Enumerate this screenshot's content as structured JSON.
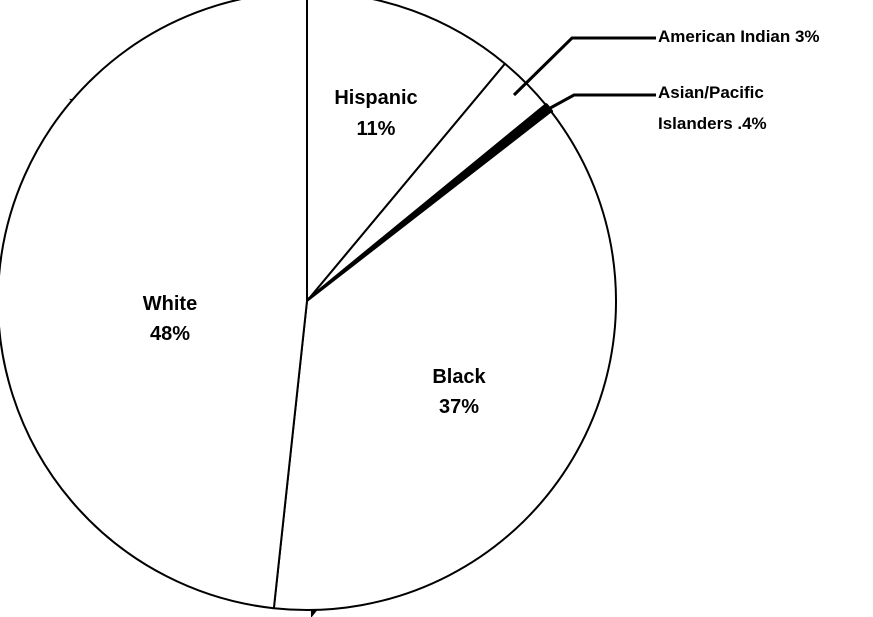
{
  "chart_data": {
    "type": "pie",
    "title": "",
    "slices": [
      {
        "label": "Hispanic",
        "value": 11,
        "display": "11%"
      },
      {
        "label": "American Indian",
        "value": 3,
        "display": "3%"
      },
      {
        "label": "Asian/Pacific Islanders",
        "value": 0.4,
        "display": ".4%"
      },
      {
        "label": "Black",
        "value": 37,
        "display": "37%"
      },
      {
        "label": "White",
        "value": 48,
        "display": "48%"
      }
    ],
    "labels": {
      "hispanic": {
        "name": "Hispanic",
        "pct": "11%"
      },
      "white": {
        "name": "White",
        "pct": "48%"
      },
      "black": {
        "name": "Black",
        "pct": "37%"
      },
      "american_indian": "American Indian 3%",
      "asian_line1": "Asian/Pacific",
      "asian_line2": "Islanders .4%"
    },
    "slice_colors": {
      "default": "#ffffff",
      "asian_pacific_islanders": "#000000"
    },
    "edge_color": "#000000",
    "legend": "none"
  }
}
